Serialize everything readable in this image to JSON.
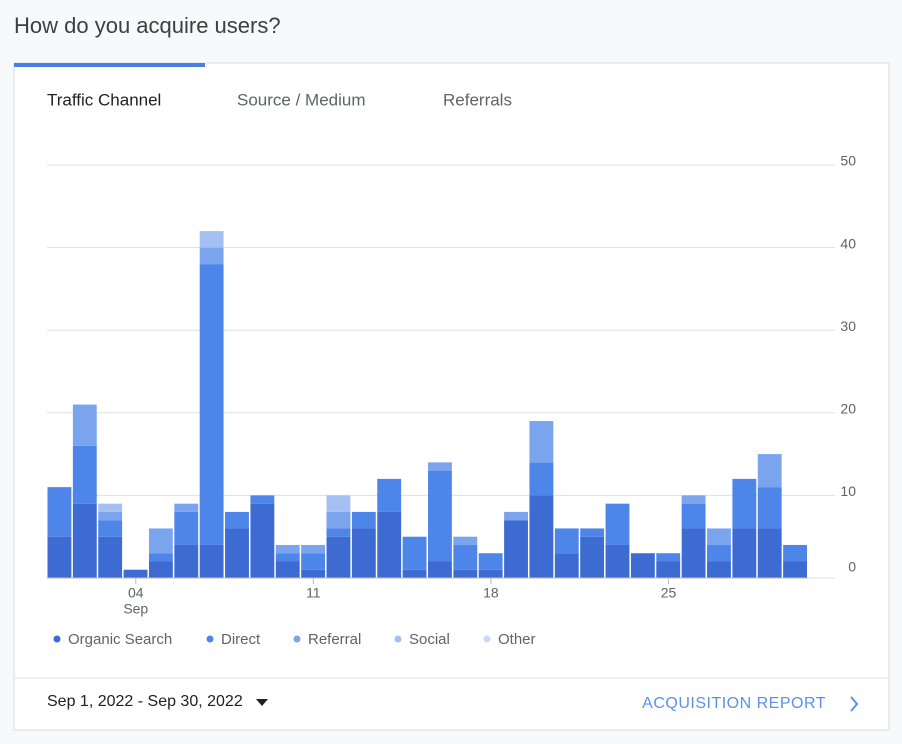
{
  "heading": "How do you acquire users?",
  "tabs": [
    "Traffic Channel",
    "Source / Medium",
    "Referrals"
  ],
  "footer": {
    "date_range": "Sep 1, 2022 - Sep 30, 2022",
    "link": "ACQUISITION REPORT"
  },
  "chart_data": {
    "type": "stacked-bar",
    "categories": [
      null,
      null,
      null,
      "04",
      null,
      null,
      null,
      null,
      null,
      null,
      "11",
      null,
      null,
      null,
      null,
      null,
      null,
      "18",
      null,
      null,
      null,
      null,
      null,
      null,
      "25",
      null,
      null,
      null,
      null,
      null
    ],
    "x_month_label": "Sep",
    "series": [
      {
        "name": "Organic Search",
        "color": "#3d6bd1",
        "values": [
          5,
          9,
          5,
          1,
          2,
          4,
          4,
          6,
          9,
          2,
          1,
          5,
          6,
          8,
          1,
          2,
          1,
          1,
          7,
          10,
          3,
          5,
          4,
          3,
          2,
          6,
          2,
          6,
          6,
          2
        ]
      },
      {
        "name": "Direct",
        "color": "#4e85e8",
        "values": [
          6,
          7,
          2,
          0,
          1,
          4,
          34,
          2,
          1,
          1,
          2,
          1,
          2,
          4,
          4,
          11,
          3,
          2,
          0,
          4,
          3,
          1,
          5,
          0,
          1,
          3,
          2,
          6,
          5,
          2
        ]
      },
      {
        "name": "Referral",
        "color": "#7ba4ee",
        "values": [
          0,
          5,
          1,
          0,
          3,
          1,
          2,
          0,
          0,
          1,
          1,
          2,
          0,
          0,
          0,
          1,
          1,
          0,
          1,
          5,
          0,
          0,
          0,
          0,
          0,
          1,
          2,
          0,
          4,
          0
        ]
      },
      {
        "name": "Social",
        "color": "#a4c0f3",
        "values": [
          0,
          0,
          1,
          0,
          0,
          0,
          2,
          0,
          0,
          0,
          0,
          2,
          0,
          0,
          0,
          0,
          0,
          0,
          0,
          0,
          0,
          0,
          0,
          0,
          0,
          0,
          0,
          0,
          0,
          0
        ]
      },
      {
        "name": "Other",
        "color": "#c9dbf8",
        "values": [
          0,
          0,
          0,
          0,
          0,
          0,
          0,
          0,
          0,
          0,
          0,
          0,
          0,
          0,
          0,
          0,
          0,
          0,
          0,
          0,
          0,
          0,
          0,
          0,
          0,
          0,
          0,
          0,
          0,
          0
        ]
      }
    ],
    "ylim": [
      0,
      50
    ],
    "yticks": [
      0,
      10,
      20,
      30,
      40,
      50
    ],
    "grid": true
  }
}
